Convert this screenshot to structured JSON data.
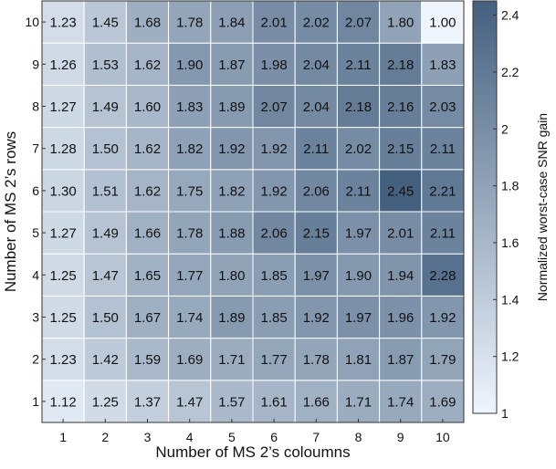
{
  "chart_data": {
    "type": "heatmap",
    "title": "",
    "xlabel": "Number of MS 2’s coloumns",
    "ylabel": "Number of MS 2’s rows",
    "x_ticks": [
      "1",
      "2",
      "3",
      "4",
      "5",
      "6",
      "7",
      "8",
      "9",
      "10"
    ],
    "y_ticks": [
      "1",
      "2",
      "3",
      "4",
      "5",
      "6",
      "7",
      "8",
      "9",
      "10"
    ],
    "values": [
      [
        "1.12",
        "1.25",
        "1.37",
        "1.47",
        "1.57",
        "1.61",
        "1.66",
        "1.71",
        "1.74",
        "1.69"
      ],
      [
        "1.23",
        "1.42",
        "1.59",
        "1.69",
        "1.71",
        "1.77",
        "1.78",
        "1.81",
        "1.87",
        "1.79"
      ],
      [
        "1.25",
        "1.50",
        "1.67",
        "1.74",
        "1.89",
        "1.85",
        "1.92",
        "1.97",
        "1.96",
        "1.92"
      ],
      [
        "1.25",
        "1.47",
        "1.65",
        "1.77",
        "1.80",
        "1.85",
        "1.97",
        "1.90",
        "1.94",
        "2.28"
      ],
      [
        "1.27",
        "1.49",
        "1.66",
        "1.78",
        "1.88",
        "2.06",
        "2.15",
        "1.97",
        "2.01",
        "2.11"
      ],
      [
        "1.30",
        "1.51",
        "1.62",
        "1.75",
        "1.82",
        "1.92",
        "2.06",
        "2.11",
        "2.45",
        "2.21"
      ],
      [
        "1.28",
        "1.50",
        "1.62",
        "1.82",
        "1.92",
        "1.92",
        "2.11",
        "2.02",
        "2.15",
        "2.11"
      ],
      [
        "1.27",
        "1.49",
        "1.60",
        "1.83",
        "1.89",
        "2.07",
        "2.04",
        "2.18",
        "2.16",
        "2.03"
      ],
      [
        "1.26",
        "1.53",
        "1.62",
        "1.90",
        "1.87",
        "1.98",
        "2.04",
        "2.11",
        "2.18",
        "1.83"
      ],
      [
        "1.23",
        "1.45",
        "1.68",
        "1.78",
        "1.84",
        "2.01",
        "2.02",
        "2.07",
        "1.80",
        "1.00"
      ]
    ],
    "colorbar": {
      "label": "Normalized worst-case SNR gain",
      "range": [
        1,
        2.45
      ],
      "ticks": [
        "1",
        "1.2",
        "1.4",
        "1.6",
        "1.8",
        "2",
        "2.2",
        "2.4"
      ],
      "color_low": "#eef5fd",
      "color_high": "#44607f"
    }
  }
}
